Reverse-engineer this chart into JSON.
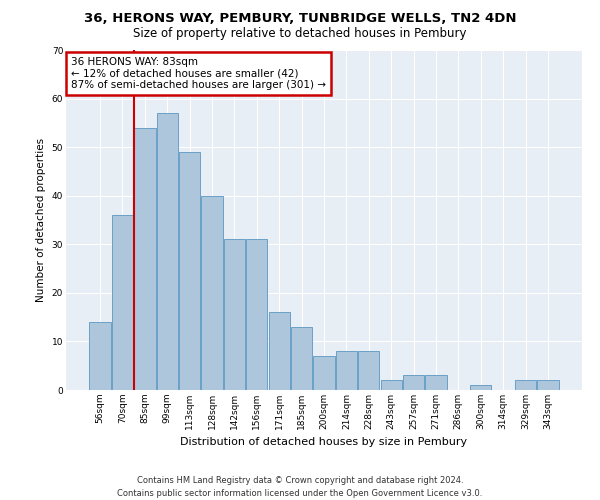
{
  "title1": "36, HERONS WAY, PEMBURY, TUNBRIDGE WELLS, TN2 4DN",
  "title2": "Size of property relative to detached houses in Pembury",
  "xlabel": "Distribution of detached houses by size in Pembury",
  "ylabel": "Number of detached properties",
  "bar_labels": [
    "56sqm",
    "70sqm",
    "85sqm",
    "99sqm",
    "113sqm",
    "128sqm",
    "142sqm",
    "156sqm",
    "171sqm",
    "185sqm",
    "200sqm",
    "214sqm",
    "228sqm",
    "243sqm",
    "257sqm",
    "271sqm",
    "286sqm",
    "300sqm",
    "314sqm",
    "329sqm",
    "343sqm"
  ],
  "bar_values": [
    14,
    36,
    54,
    57,
    49,
    40,
    31,
    31,
    16,
    13,
    7,
    8,
    8,
    2,
    3,
    3,
    0,
    1,
    0,
    2,
    2
  ],
  "bar_color": "#aec6dc",
  "bar_edge_color": "#6aa0c7",
  "bg_color": "#e8eef5",
  "annotation_text": "36 HERONS WAY: 83sqm\n← 12% of detached houses are smaller (42)\n87% of semi-detached houses are larger (301) →",
  "vline_color": "#cc0000",
  "vline_pos": 1.5,
  "box_edge_color": "#cc0000",
  "footer": "Contains HM Land Registry data © Crown copyright and database right 2024.\nContains public sector information licensed under the Open Government Licence v3.0.",
  "ylim": [
    0,
    70
  ],
  "yticks": [
    0,
    10,
    20,
    30,
    40,
    50,
    60,
    70
  ],
  "title1_fontsize": 9.5,
  "title2_fontsize": 8.5,
  "xlabel_fontsize": 8,
  "ylabel_fontsize": 7.5,
  "tick_fontsize": 6.5,
  "footer_fontsize": 6,
  "ann_fontsize": 7.5
}
